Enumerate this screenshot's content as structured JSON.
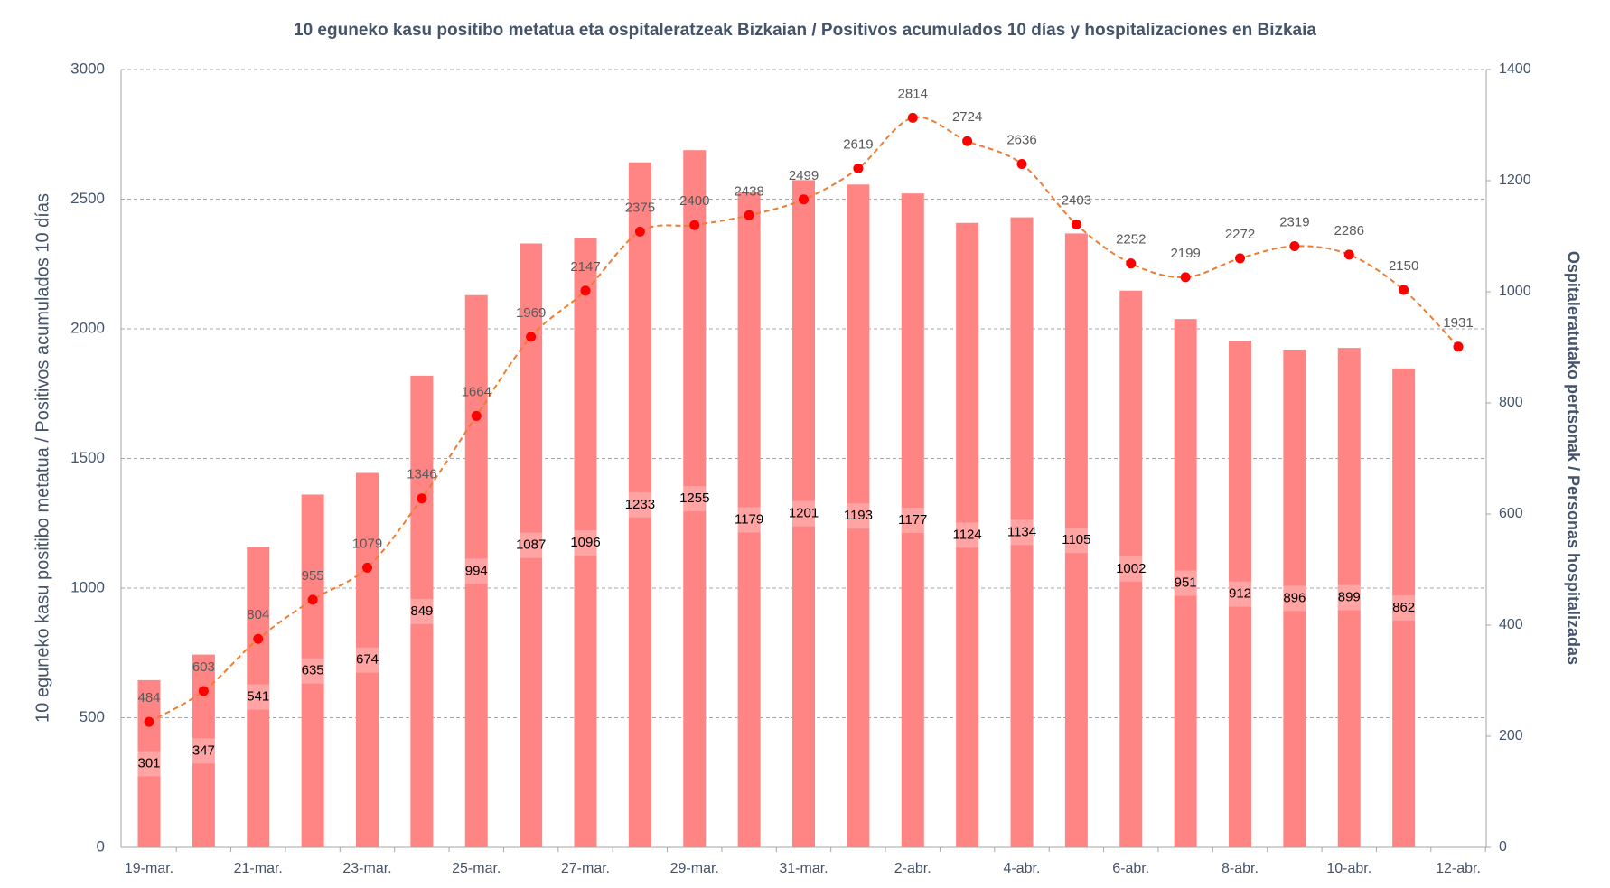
{
  "chart_data": {
    "type": "bar",
    "title": "10 eguneko kasu positibo metatua eta ospitaleratzeak Bizkaian / Positivos acumulados 10 días y hospitalizaciones en Bizkaia",
    "y_label": "10 eguneko kasu positibo metatua  / Positivos acumulados 10 días",
    "y2_label": "Ospitaleratutako pertsonak / Personas hospitalizadas",
    "categories": [
      "19-mar.",
      null,
      "21-mar.",
      null,
      "23-mar.",
      null,
      "25-mar.",
      null,
      "27-mar.",
      null,
      "29-mar.",
      null,
      "31-mar.",
      null,
      "2-abr.",
      null,
      "4-abr.",
      null,
      "6-abr.",
      null,
      "8-abr.",
      null,
      "10-abr.",
      null,
      "12-abr."
    ],
    "series": [
      {
        "name": "Ospitaleratutako pertsonak / Personas hospitalizadas",
        "type": "bar",
        "axis": "y2",
        "color": "#ff8585",
        "values": [
          301,
          347,
          541,
          635,
          674,
          849,
          994,
          1087,
          1096,
          1233,
          1255,
          1179,
          1201,
          1193,
          1177,
          1124,
          1134,
          1105,
          1002,
          951,
          912,
          896,
          899,
          862,
          null
        ]
      },
      {
        "name": "10 eguneko kasu positibo metatua / Positivos acumulados 10 días",
        "type": "line",
        "axis": "y",
        "color": "#ed7d31",
        "marker_color": "#ff0000",
        "values": [
          484,
          603,
          804,
          955,
          1079,
          1346,
          1664,
          1969,
          2147,
          2375,
          2400,
          2438,
          2499,
          2619,
          2814,
          2724,
          2636,
          2403,
          2252,
          2199,
          2272,
          2319,
          2286,
          2150,
          1931
        ]
      }
    ],
    "ylim": [
      0,
      3000
    ],
    "yticks": [
      0,
      500,
      1000,
      1500,
      2000,
      2500,
      3000
    ],
    "y2lim": [
      0,
      1400
    ],
    "y2ticks": [
      0,
      200,
      400,
      600,
      800,
      1000,
      1200,
      1400
    ],
    "grid": true
  }
}
